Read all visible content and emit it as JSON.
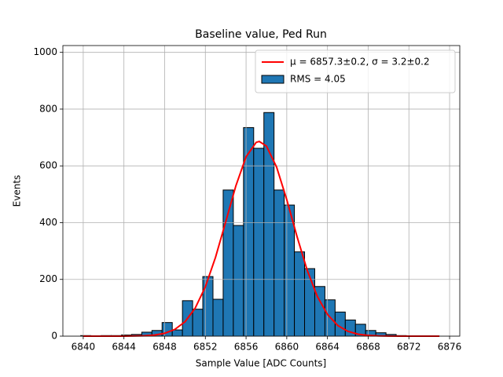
{
  "chart_data": {
    "type": "histogram",
    "title": "Baseline value, Ped Run",
    "xlabel": "Sample Value [ADC Counts]",
    "ylabel": "Events",
    "histogram": {
      "name": "RMS = 4.05",
      "color": "#1f77b4",
      "edgecolor": "#000000",
      "bins": [
        6839.75,
        6840.75,
        6841.75,
        6842.75,
        6843.75,
        6844.75,
        6845.75,
        6846.75,
        6847.75,
        6848.75,
        6849.75,
        6850.75,
        6851.75,
        6852.75,
        6853.75,
        6854.75,
        6855.75,
        6856.75,
        6857.75,
        6858.75,
        6859.75,
        6860.75,
        6861.75,
        6862.75,
        6863.75,
        6864.75,
        6865.75,
        6866.75,
        6867.75,
        6868.75,
        6869.75,
        6870.75,
        6871.75,
        6872.75,
        6873.75,
        6874.75
      ],
      "values": [
        2,
        1,
        2,
        2,
        4,
        6,
        14,
        20,
        48,
        22,
        125,
        95,
        210,
        130,
        515,
        390,
        735,
        662,
        788,
        515,
        462,
        297,
        238,
        175,
        128,
        85,
        57,
        42,
        20,
        12,
        6,
        2,
        1,
        1,
        0
      ]
    },
    "fit": {
      "name": "μ = 6857.3±0.2, σ = 3.2±0.2",
      "color": "#ff0000",
      "x": [
        6840,
        6842,
        6844,
        6846,
        6847,
        6848,
        6849,
        6850,
        6851,
        6852,
        6853,
        6854,
        6855,
        6856,
        6857,
        6857.3,
        6858,
        6859,
        6860,
        6861,
        6862,
        6863,
        6864,
        6865,
        6866,
        6867,
        6868,
        6869,
        6870,
        6872,
        6875
      ],
      "values": [
        0,
        0,
        0.1,
        1.4,
        3.9,
        10.1,
        23.8,
        50.8,
        98.7,
        174,
        278,
        403,
        530,
        632,
        683,
        686,
        670,
        596,
        481,
        352,
        233,
        140,
        76.7,
        37.9,
        17,
        6.9,
        2.6,
        0.9,
        0.3,
        0,
        0
      ]
    },
    "xlim": [
      6838,
      6877
    ],
    "ylim": [
      0,
      1024
    ],
    "xticks": [
      6840,
      6844,
      6848,
      6852,
      6856,
      6860,
      6864,
      6868,
      6872,
      6876
    ],
    "yticks": [
      0,
      200,
      400,
      600,
      800,
      1000
    ],
    "grid": true,
    "legend": "upper right"
  }
}
